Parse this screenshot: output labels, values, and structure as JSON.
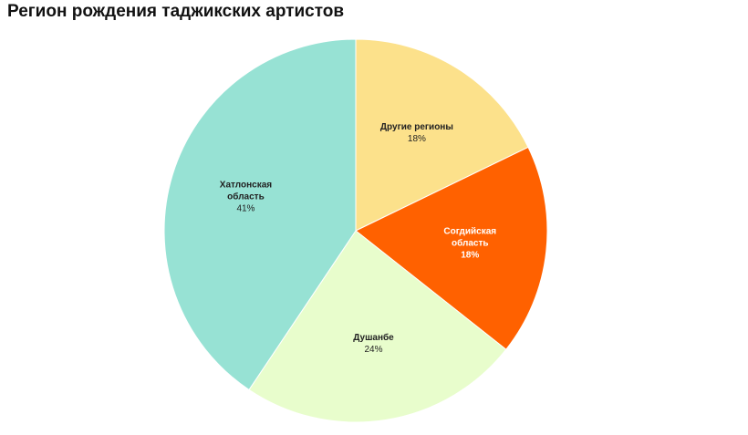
{
  "chart_data": {
    "type": "pie",
    "title": "Регион рождения таджикских артистов",
    "categories": [
      "Другие регионы",
      "Согдийская область",
      "Душанбе",
      "Хатлонская область"
    ],
    "values": [
      18,
      18,
      24,
      41
    ],
    "value_labels": [
      "18%",
      "18%",
      "24%",
      "41%"
    ],
    "colors": [
      "#fce18b",
      "#ff6100",
      "#e8fdcc",
      "#97e2d4"
    ]
  }
}
